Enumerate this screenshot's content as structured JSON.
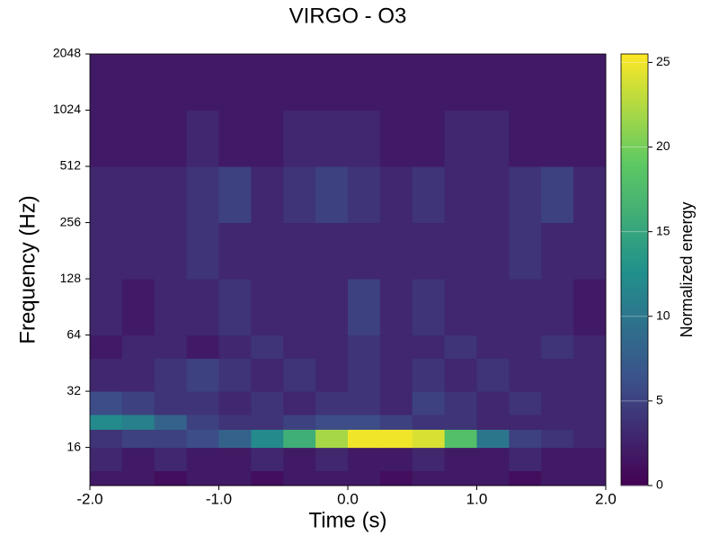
{
  "chart_data": {
    "type": "heatmap",
    "title": "VIRGO - O3",
    "xlabel": "Time (s)",
    "ylabel": "Frequency (Hz)",
    "colorbar_label": "Normalized energy",
    "x_bins": [
      -2,
      -1.75,
      -1.5,
      -1.25,
      -1,
      -0.75,
      -0.5,
      -0.25,
      0,
      0.25,
      0.5,
      0.75,
      1,
      1.25,
      1.5,
      1.75,
      2
    ],
    "y_bins": [
      10,
      12,
      16,
      20,
      24,
      32,
      48,
      64,
      128,
      256,
      512,
      1024,
      2048
    ],
    "z": [
      [
        2,
        2,
        1,
        2,
        2,
        1,
        2,
        2,
        2,
        1,
        2,
        2,
        2,
        1,
        2,
        2
      ],
      [
        3,
        2,
        3,
        2,
        2,
        3,
        2,
        3,
        2,
        2,
        3,
        2,
        2,
        3,
        2,
        2
      ],
      [
        4,
        5,
        5,
        6,
        8,
        12,
        16,
        22,
        25,
        25,
        24,
        18,
        10,
        5,
        4,
        3
      ],
      [
        12,
        11,
        8,
        5,
        4,
        4,
        5,
        6,
        6,
        5,
        4,
        4,
        3,
        3,
        3,
        3
      ],
      [
        6,
        5,
        4,
        4,
        3,
        4,
        3,
        4,
        4,
        3,
        5,
        4,
        3,
        4,
        3,
        3
      ],
      [
        3,
        3,
        4,
        5,
        4,
        3,
        4,
        3,
        4,
        3,
        4,
        3,
        4,
        3,
        3,
        3
      ],
      [
        2,
        3,
        3,
        2,
        3,
        4,
        3,
        3,
        4,
        3,
        3,
        4,
        3,
        3,
        4,
        3
      ],
      [
        3,
        2,
        3,
        3,
        4,
        3,
        3,
        3,
        5,
        3,
        4,
        3,
        3,
        3,
        3,
        2
      ],
      [
        3,
        3,
        3,
        4,
        3,
        3,
        3,
        3,
        3,
        3,
        3,
        3,
        3,
        4,
        3,
        3
      ],
      [
        3,
        3,
        3,
        4,
        5,
        3,
        4,
        5,
        4,
        3,
        4,
        3,
        3,
        4,
        5,
        3
      ],
      [
        2,
        2,
        2,
        3,
        2,
        2,
        3,
        3,
        3,
        2,
        2,
        3,
        3,
        2,
        2,
        2
      ],
      [
        2,
        2,
        2,
        2,
        2,
        2,
        2,
        2,
        2,
        2,
        2,
        2,
        2,
        2,
        2,
        2
      ]
    ],
    "xlim": [
      -2,
      2
    ],
    "xticks": [
      {
        "value": -2,
        "label": "-2.0"
      },
      {
        "value": -1,
        "label": "-1.0"
      },
      {
        "value": 0,
        "label": "0.0"
      },
      {
        "value": 1,
        "label": "1.0"
      },
      {
        "value": 2,
        "label": "2.0"
      }
    ],
    "ylim": [
      10,
      2048
    ],
    "yscale": "log2",
    "yticks": [
      16,
      32,
      64,
      128,
      256,
      512,
      1024,
      2048
    ],
    "clim": [
      0,
      25.5
    ],
    "cticks": [
      0,
      5,
      10,
      15,
      20,
      25
    ],
    "colormap": [
      "#440154",
      "#3b528b",
      "#21918c",
      "#5ec962",
      "#fde725"
    ]
  }
}
